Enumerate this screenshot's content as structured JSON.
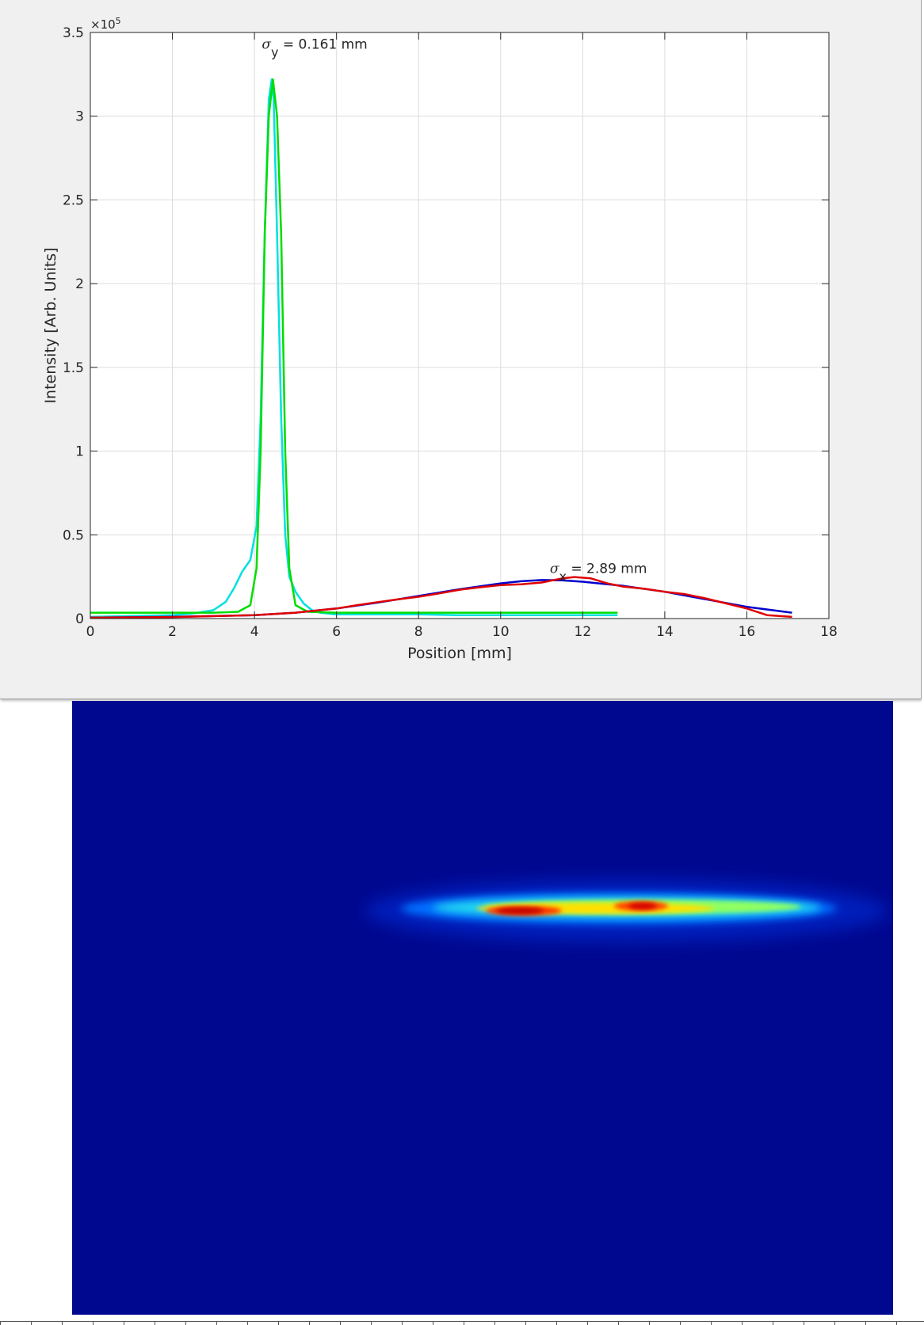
{
  "window": {
    "kind": "figure-window"
  },
  "chart_data": {
    "type": "line",
    "title": "",
    "xlabel": "Position [mm]",
    "ylabel": "Intensity [Arb. Units]",
    "xlim": [
      0,
      18
    ],
    "ylim": [
      0,
      350000
    ],
    "y_exponent_label": "×10",
    "y_exponent_power": "5",
    "xticks": [
      0,
      2,
      4,
      6,
      8,
      10,
      12,
      14,
      16,
      18
    ],
    "xtick_labels": [
      "0",
      "2",
      "4",
      "6",
      "8",
      "10",
      "12",
      "14",
      "16",
      "18"
    ],
    "yticks": [
      0,
      50000,
      100000,
      150000,
      200000,
      250000,
      300000,
      350000
    ],
    "ytick_labels": [
      "0",
      "0.5",
      "1",
      "1.5",
      "2",
      "2.5",
      "3",
      "3.5"
    ],
    "grid": true,
    "annotations": {
      "sigma_y": {
        "symbol": "σ",
        "sub": "y",
        "text": " = 0.161 mm",
        "x": 4.45,
        "y": 346000
      },
      "sigma_x": {
        "symbol": "σ",
        "sub": "x",
        "text": " = 2.89 mm",
        "x": 11.2,
        "y": 29000
      }
    },
    "series": [
      {
        "color": "#00e0e0",
        "x": [
          0,
          1,
          2,
          2.5,
          3,
          3.3,
          3.5,
          3.7,
          3.9,
          4.05,
          4.15,
          4.25,
          4.35,
          4.42,
          4.47,
          4.55,
          4.65,
          4.75,
          4.85,
          5.0,
          5.2,
          5.4,
          5.6,
          6,
          7,
          8,
          9,
          10,
          11,
          12,
          12.85
        ],
        "y": [
          1000,
          1500,
          2000,
          3000,
          5000,
          10000,
          18000,
          28000,
          35000,
          55000,
          120000,
          230000,
          310000,
          322000,
          310000,
          230000,
          120000,
          50000,
          25000,
          16000,
          9000,
          5000,
          3500,
          2500,
          2500,
          2500,
          2000,
          2000,
          2000,
          2000,
          2000
        ]
      },
      {
        "color": "#00dd00",
        "x": [
          0,
          3,
          3.6,
          3.9,
          4.05,
          4.15,
          4.25,
          4.35,
          4.45,
          4.55,
          4.65,
          4.75,
          4.85,
          5.0,
          5.3,
          6,
          12.85
        ],
        "y": [
          3500,
          3500,
          4000,
          8000,
          30000,
          100000,
          230000,
          300000,
          322000,
          300000,
          230000,
          100000,
          30000,
          8000,
          4000,
          3500,
          3500
        ]
      },
      {
        "color": "#0000cc",
        "x": [
          0,
          2,
          4,
          5,
          6,
          7,
          8,
          9,
          10,
          10.5,
          11,
          11.5,
          12,
          13,
          14,
          15,
          16,
          17.1
        ],
        "y": [
          500,
          1000,
          2000,
          3500,
          6000,
          9500,
          13500,
          17500,
          21000,
          22300,
          23000,
          22800,
          22000,
          19500,
          16000,
          11500,
          7000,
          3500
        ]
      },
      {
        "color": "#e00000",
        "x": [
          0,
          2,
          4,
          5,
          6,
          6.5,
          7,
          7.5,
          8,
          8.5,
          9,
          9.5,
          10,
          10.5,
          11,
          11.5,
          11.8,
          12.2,
          12.6,
          13,
          13.5,
          14,
          14.5,
          15,
          15.5,
          16,
          16.5,
          17.1
        ],
        "y": [
          500,
          900,
          2000,
          3500,
          6000,
          8000,
          9800,
          11500,
          13000,
          15000,
          17200,
          18700,
          20000,
          20500,
          21500,
          24000,
          24800,
          24000,
          21000,
          19000,
          17800,
          16000,
          14500,
          12000,
          9000,
          6000,
          2000,
          1000
        ]
      }
    ]
  },
  "image": {
    "kind": "beam-profile-camera-image",
    "colormap": "jet",
    "background": "#00088f"
  }
}
